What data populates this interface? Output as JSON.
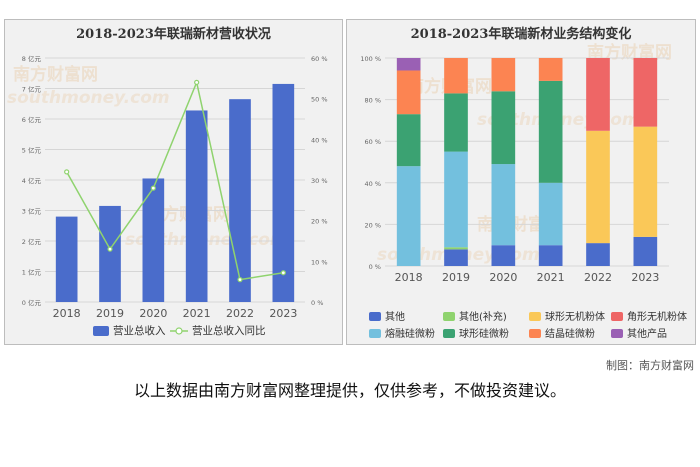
{
  "watermark": {
    "cn": "南方财富网",
    "en": "southmoney.com"
  },
  "chart_data": [
    {
      "type": "bar",
      "title": "2018-2023年联瑞新材营收状况",
      "categories": [
        "2018",
        "2019",
        "2020",
        "2021",
        "2022",
        "2023"
      ],
      "series": [
        {
          "name": "营业总收入",
          "type": "bar",
          "axis": "left",
          "color": "#4a6ccb",
          "values": [
            2.8,
            3.15,
            4.05,
            6.28,
            6.65,
            7.15
          ]
        },
        {
          "name": "营业总收入同比",
          "type": "line",
          "axis": "right",
          "color": "#8fd36e",
          "values": [
            32,
            13,
            28,
            54,
            5.5,
            7.2
          ]
        }
      ],
      "yleft": {
        "min": 0,
        "max": 8,
        "step": 1,
        "suffix": "亿元",
        "ticks": [
          "0 亿元",
          "1 亿元",
          "2 亿元",
          "3 亿元",
          "4 亿元",
          "5 亿元",
          "6 亿元",
          "7 亿元",
          "8 亿元"
        ]
      },
      "yright": {
        "min": 0,
        "max": 60,
        "step": 10,
        "ticks": [
          "0 %",
          "10 %",
          "20 %",
          "30 %",
          "40 %",
          "50 %",
          "60 %"
        ]
      },
      "grid": true,
      "legend": "bottom"
    },
    {
      "type": "bar",
      "stacked": true,
      "title": "2018-2023年联瑞新材业务结构变化",
      "categories": [
        "2018",
        "2019",
        "2020",
        "2021",
        "2022",
        "2023"
      ],
      "yaxis": {
        "min": 0,
        "max": 100,
        "ticks": [
          "0 %",
          "20 %",
          "40 %",
          "60 %",
          "80 %",
          "100 %"
        ]
      },
      "series": [
        {
          "name": "其他",
          "color": "#4a6ccb",
          "values": [
            0,
            8,
            10,
            10,
            11,
            14
          ]
        },
        {
          "name": "其他(补充)",
          "color": "#8fd36e",
          "values": [
            0,
            1,
            0,
            0,
            0,
            0
          ]
        },
        {
          "name": "熔融硅微粉",
          "color": "#73c0de",
          "values": [
            48,
            46,
            39,
            30,
            0,
            0
          ]
        },
        {
          "name": "球形无机粉体",
          "color": "#fac858",
          "values": [
            0,
            0,
            0,
            0,
            54,
            53
          ]
        },
        {
          "name": "球形硅微粉",
          "color": "#3ba272",
          "values": [
            25,
            28,
            35,
            49,
            0,
            0
          ]
        },
        {
          "name": "角形无机粉体",
          "color": "#ee6666",
          "values": [
            0,
            0,
            0,
            0,
            35,
            33
          ]
        },
        {
          "name": "结晶硅微粉",
          "color": "#fc8452",
          "values": [
            21,
            17,
            16,
            11,
            0,
            0
          ]
        },
        {
          "name": "其他产品",
          "color": "#9a60b4",
          "values": [
            6,
            0,
            0,
            0,
            0,
            0
          ]
        }
      ],
      "legend_rows": [
        [
          "其他",
          "其他(补充)",
          "球形无机粉体",
          "角形无机粉体"
        ],
        [
          "熔融硅微粉",
          "球形硅微粉",
          "结晶硅微粉",
          "其他产品"
        ]
      ],
      "grid": true,
      "legend": "bottom"
    }
  ],
  "footer": {
    "credit": "制图：南方财富网",
    "disclaimer": "以上数据由南方财富网整理提供，仅供参考，不做投资建议。"
  }
}
